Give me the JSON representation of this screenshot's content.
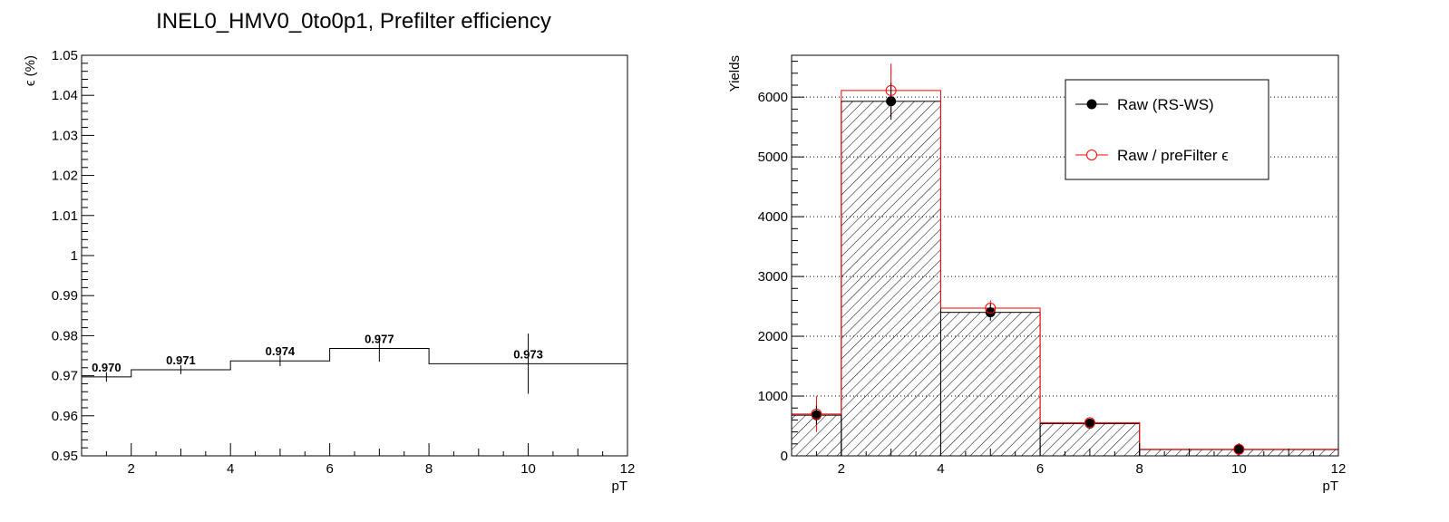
{
  "chart_data": [
    {
      "type": "line",
      "subtype": "histogram-step",
      "title": "INEL0_HMV0_0to0p1, Prefilter efficiency",
      "xlabel": "pT",
      "ylabel": "ϵ (%)",
      "xlim": [
        1,
        12
      ],
      "ylim": [
        0.95,
        1.05
      ],
      "xticks": [
        2,
        4,
        6,
        8,
        10,
        12
      ],
      "yticks": [
        0.95,
        0.96,
        0.97,
        0.98,
        0.99,
        1,
        1.01,
        1.02,
        1.03,
        1.04,
        1.05
      ],
      "ytick_labels": [
        "0.95",
        "0.96",
        "0.97",
        "0.98",
        "0.99",
        "1",
        "1.01",
        "1.02",
        "1.03",
        "1.04",
        "1.05"
      ],
      "grid": false,
      "bin_edges": [
        1,
        2,
        4,
        6,
        8,
        12
      ],
      "x": [
        1.5,
        3,
        5,
        7,
        10
      ],
      "values": [
        0.9697,
        0.9715,
        0.9737,
        0.9768,
        0.973
      ],
      "errors": [
        0.0012,
        0.0011,
        0.0013,
        0.0033,
        0.0075
      ],
      "data_labels": [
        "0.970",
        "0.971",
        "0.974",
        "0.977",
        "0.973"
      ],
      "color": "#000000"
    },
    {
      "type": "bar",
      "subtype": "histogram-overlay",
      "title": "",
      "xlabel": "pT",
      "ylabel": "Yields",
      "xlim": [
        1,
        12
      ],
      "ylim": [
        0,
        6700
      ],
      "xticks": [
        2,
        4,
        6,
        8,
        10,
        12
      ],
      "yticks": [
        0,
        1000,
        2000,
        3000,
        4000,
        5000,
        6000
      ],
      "grid": "y",
      "legend_position": "top-right",
      "bin_edges": [
        1,
        2,
        4,
        6,
        8,
        12
      ],
      "x": [
        1.5,
        3,
        5,
        7,
        10
      ],
      "series": [
        {
          "name": "Raw (RS-WS)",
          "values": [
            680,
            5930,
            2400,
            540,
            105
          ],
          "errors": [
            160,
            310,
            140,
            45,
            30
          ],
          "color": "#000000",
          "fill": "hatched",
          "marker": "filled-circle"
        },
        {
          "name": "Raw / preFilter ϵ",
          "values": [
            700,
            6110,
            2470,
            555,
            110
          ],
          "errors": [
            300,
            450,
            130,
            60,
            40
          ],
          "color": "#ff0000",
          "fill": "none",
          "marker": "open-circle"
        }
      ]
    }
  ]
}
